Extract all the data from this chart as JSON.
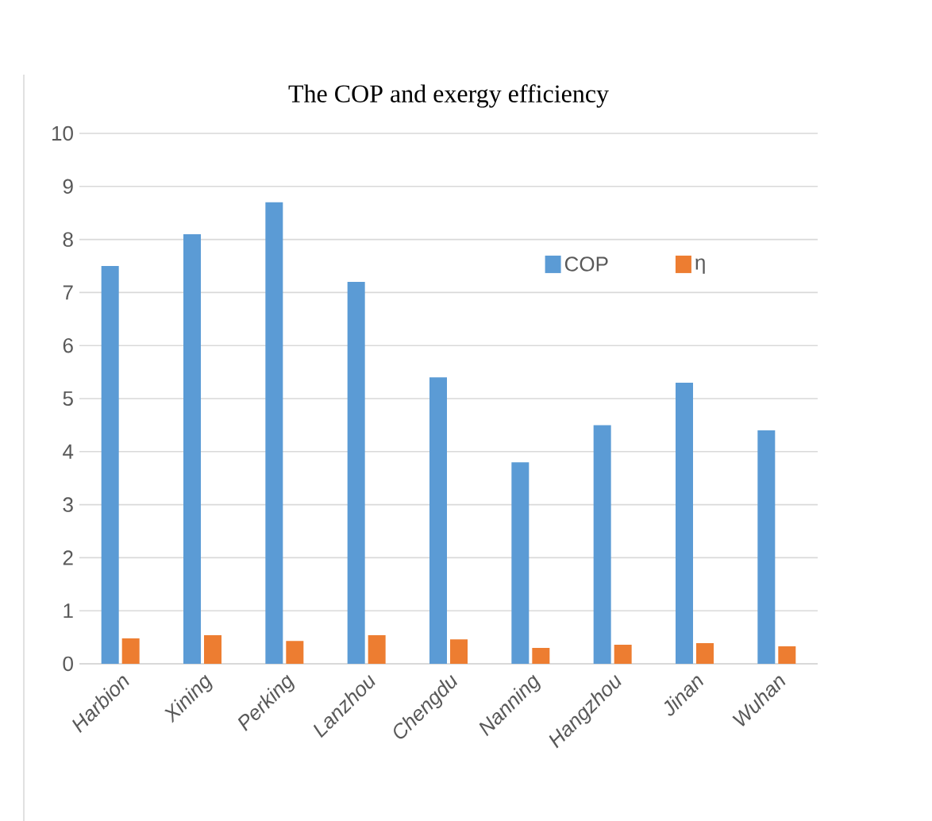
{
  "chart_data": {
    "type": "bar",
    "title": "The COP and exergy efficiency",
    "categories": [
      "Harbion",
      "Xining",
      "Perking",
      "Lanzhou",
      "Chengdu",
      "Nanning",
      "Hangzhou",
      "Jinan",
      "Wuhan"
    ],
    "series": [
      {
        "name": "COP",
        "color": "#5b9bd5",
        "values": [
          7.5,
          8.1,
          8.7,
          7.2,
          5.4,
          3.8,
          4.5,
          5.3,
          4.4
        ]
      },
      {
        "name": "η",
        "color": "#ed7d31",
        "values": [
          0.48,
          0.54,
          0.43,
          0.54,
          0.46,
          0.3,
          0.36,
          0.39,
          0.33
        ]
      }
    ],
    "ylim": [
      0,
      10
    ],
    "yticks": [
      0,
      1,
      2,
      3,
      4,
      5,
      6,
      7,
      8,
      9,
      10
    ],
    "grid": "y",
    "legend": "top right"
  }
}
